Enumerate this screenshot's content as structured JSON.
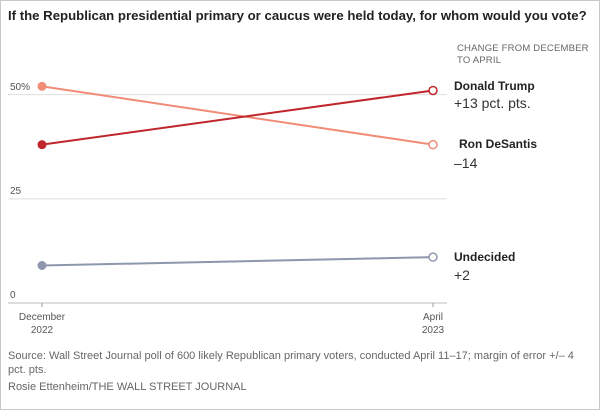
{
  "title": "If the Republican presidential primary or caucus were held today, for whom would you vote?",
  "change_header": "CHANGE FROM DECEMBER TO APRIL",
  "source": "Source: Wall Street Journal poll of 600 likely Republican primary voters, conducted April 11–17; margin of error +/– 4 pct. pts.",
  "credit": "Rosie Ettenheim/THE WALL STREET JOURNAL",
  "chart_data": {
    "type": "line",
    "x": [
      "December 2022",
      "April 2023"
    ],
    "x_tick_labels": [
      [
        "December",
        "2022"
      ],
      [
        "April",
        "2023"
      ]
    ],
    "y_tick_labels": [
      "50%",
      "25",
      "0"
    ],
    "ylim": [
      0,
      54
    ],
    "grid": true,
    "series": [
      {
        "name": "Ron DeSantis",
        "change": "–14",
        "values": [
          52,
          38
        ],
        "color": "#f08c78"
      },
      {
        "name": "Donald Trump",
        "change": "+13 pct. pts.",
        "values": [
          38,
          51
        ],
        "color": "#c0262c"
      },
      {
        "name": "Undecided",
        "change": "+2",
        "values": [
          9,
          11
        ],
        "color": "#8e97ae"
      }
    ]
  }
}
